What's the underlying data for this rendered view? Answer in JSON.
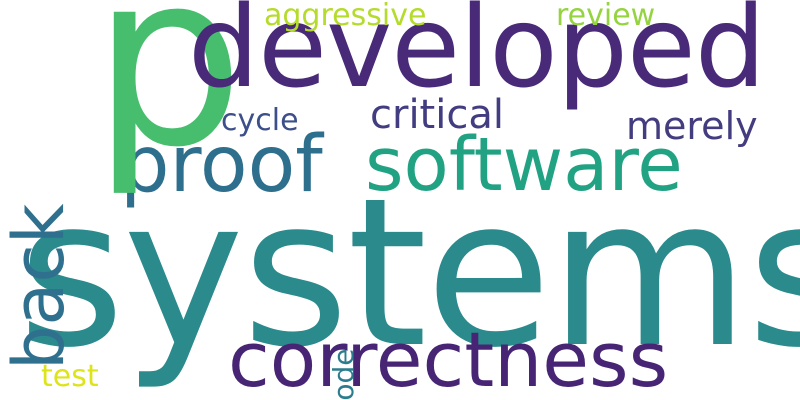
{
  "words": {
    "systems": {
      "text": "systems",
      "color": "#2a8a8c"
    },
    "developed": {
      "text": "developed",
      "color": "#482a78"
    },
    "p": {
      "text": "p",
      "color": "#47be6e"
    },
    "software": {
      "text": "software",
      "color": "#21a383"
    },
    "proof": {
      "text": "proof",
      "color": "#2e6f8d"
    },
    "correctness": {
      "text": "correctness",
      "color": "#472574"
    },
    "back": {
      "text": "back",
      "color": "#2f708e"
    },
    "critical": {
      "text": "critical",
      "color": "#423c80"
    },
    "merely": {
      "text": "merely",
      "color": "#433d80"
    },
    "aggressive": {
      "text": "aggressive",
      "color": "#b5db2c"
    },
    "review": {
      "text": "review",
      "color": "#95d440"
    },
    "cycle": {
      "text": "cycle",
      "color": "#3c4f8a"
    },
    "code": {
      "text": "code",
      "color": "#2b7d8e"
    },
    "test": {
      "text": "test",
      "color": "#dee41a"
    }
  }
}
